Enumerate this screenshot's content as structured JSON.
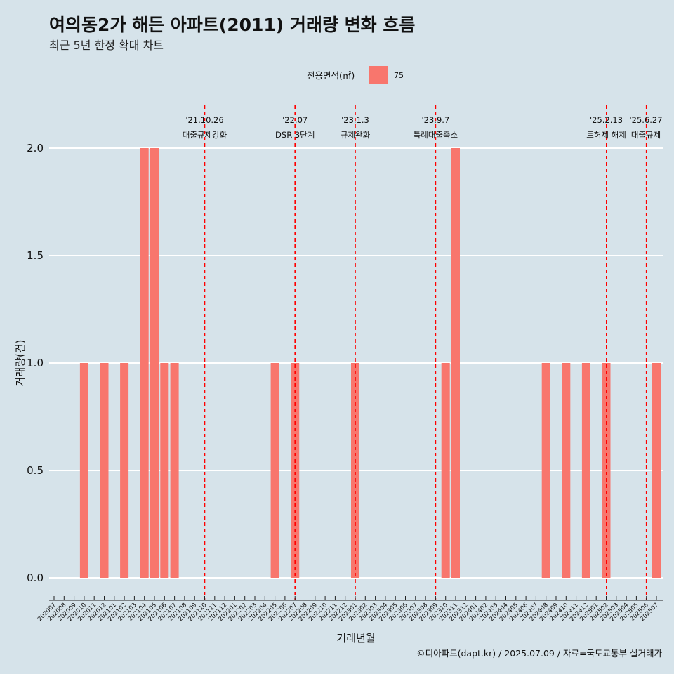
{
  "title": "여의동2가 해든 아파트(2011) 거래량 변화 흐름",
  "subtitle": "최근 5년 한정 확대 차트",
  "caption": "©디아파트(dapt.kr) / 2025.07.09 / 자료=국토교통부 실거래가",
  "legend": {
    "title": "전용면적(㎡)",
    "label": "75",
    "color": "#f8766d"
  },
  "colors": {
    "background": "#d6e3ea",
    "grid": "#ffffff",
    "bar": "#f8766d",
    "event_line": "#ff0000"
  },
  "chart_data": {
    "type": "bar",
    "title": "여의동2가 해든 아파트(2011) 거래량 변화 흐름",
    "subtitle": "최근 5년 한정 확대 차트",
    "xlabel": "거래년월",
    "ylabel": "거래량(건)",
    "ylim": [
      0,
      2
    ],
    "yticks": [
      "0.0",
      "0.5",
      "1.0",
      "1.5",
      "2.0"
    ],
    "grid": true,
    "legend_position": "top",
    "categories": [
      "202007",
      "202008",
      "202009",
      "202010",
      "202011",
      "202012",
      "202101",
      "202102",
      "202103",
      "202104",
      "202105",
      "202106",
      "202107",
      "202108",
      "202109",
      "202110",
      "202111",
      "202112",
      "202201",
      "202202",
      "202203",
      "202204",
      "202205",
      "202206",
      "202207",
      "202208",
      "202209",
      "202210",
      "202211",
      "202212",
      "202301",
      "202302",
      "202303",
      "202304",
      "202305",
      "202306",
      "202307",
      "202308",
      "202309",
      "202310",
      "202311",
      "202312",
      "202401",
      "202402",
      "202403",
      "202404",
      "202405",
      "202406",
      "202407",
      "202408",
      "202409",
      "202410",
      "202411",
      "202412",
      "202501",
      "202502",
      "202503",
      "202504",
      "202505",
      "202506",
      "202507"
    ],
    "series": [
      {
        "name": "75",
        "values": [
          0,
          0,
          0,
          1,
          0,
          1,
          0,
          1,
          0,
          2,
          2,
          1,
          1,
          0,
          0,
          0,
          0,
          0,
          0,
          0,
          0,
          0,
          1,
          0,
          1,
          0,
          0,
          0,
          0,
          0,
          1,
          0,
          0,
          0,
          0,
          0,
          0,
          0,
          0,
          1,
          2,
          0,
          0,
          0,
          0,
          0,
          0,
          0,
          0,
          1,
          0,
          1,
          0,
          1,
          0,
          1,
          0,
          0,
          0,
          0,
          1
        ]
      }
    ],
    "events": [
      {
        "month": "202110",
        "date_label": "'21.10.26",
        "text": "대출규제강화"
      },
      {
        "month": "202207",
        "date_label": "'22.07",
        "text": "DSR 3단계"
      },
      {
        "month": "202301",
        "date_label": "'23.1.3",
        "text": "규제완화"
      },
      {
        "month": "202309",
        "date_label": "'23.9.7",
        "text": "특례대출축소"
      },
      {
        "month": "202502",
        "date_label": "'25.2.13",
        "text": "토허제 해제"
      },
      {
        "month": "202506",
        "date_label": "'25.6.27",
        "text": "대출규제"
      }
    ]
  }
}
